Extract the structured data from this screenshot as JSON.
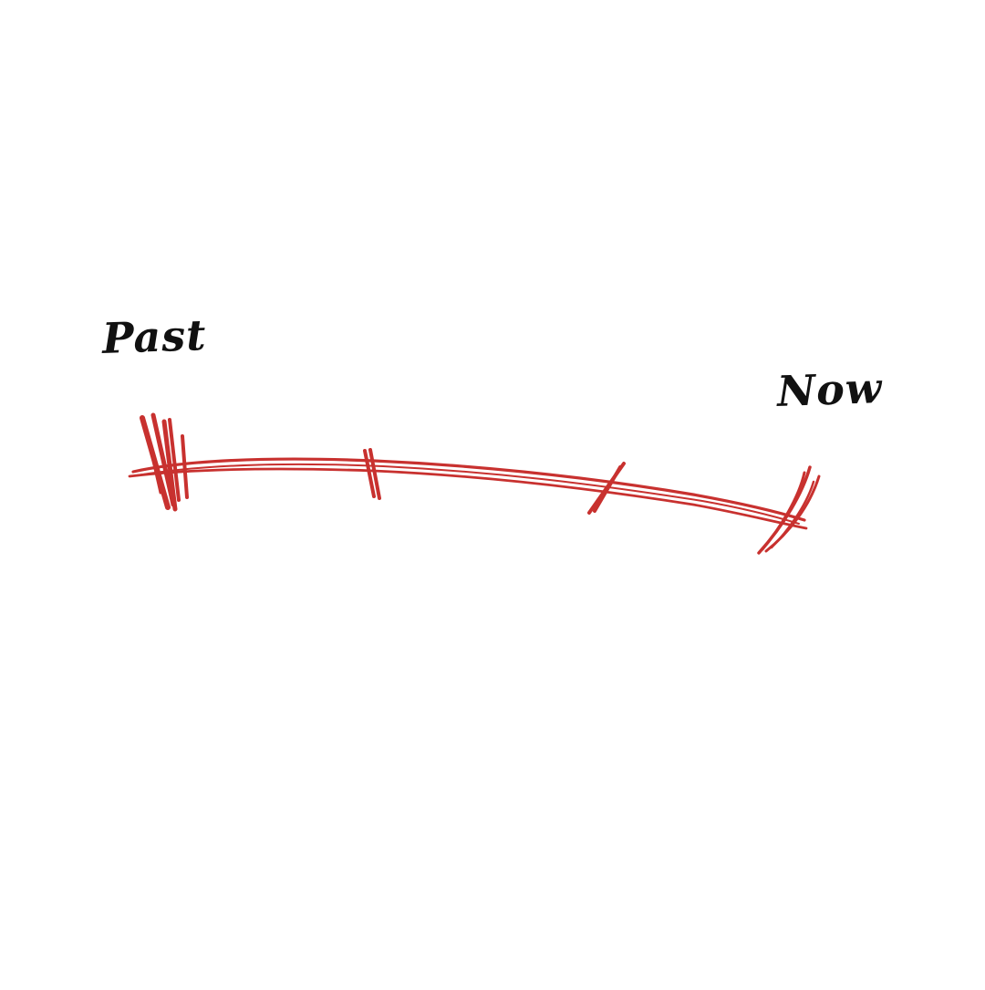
{
  "timeline": {
    "start_label": "Past",
    "end_label": "Now",
    "line_color": "#c8312f",
    "tick_count": 4,
    "text_color": "#111111"
  }
}
